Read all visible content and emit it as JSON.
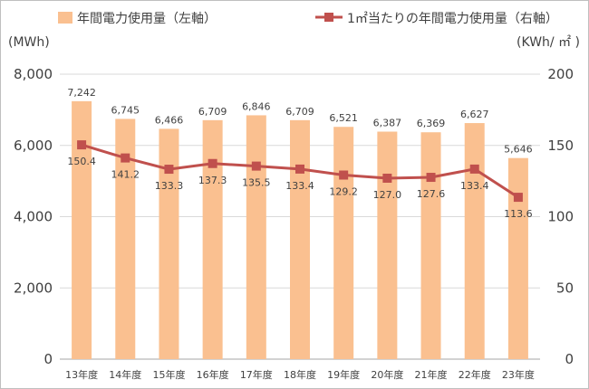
{
  "chart_data": {
    "type": "bar+line",
    "categories": [
      "13年度",
      "14年度",
      "15年度",
      "16年度",
      "17年度",
      "18年度",
      "19年度",
      "20年度",
      "21年度",
      "22年度",
      "23年度"
    ],
    "series": [
      {
        "name": "年間電力使用量（左軸）",
        "type": "bar",
        "axis": "left",
        "values": [
          7242,
          6745,
          6466,
          6709,
          6846,
          6709,
          6521,
          6387,
          6369,
          6627,
          5646
        ],
        "labels": [
          "7,242",
          "6,745",
          "6,466",
          "6,709",
          "6,846",
          "6,709",
          "6,521",
          "6,387",
          "6,369",
          "6,627",
          "5,646"
        ],
        "color": "#fac090"
      },
      {
        "name": "1㎡当たりの年間電力使用量（右軸）",
        "type": "line",
        "axis": "right",
        "values": [
          150.4,
          141.2,
          133.3,
          137.3,
          135.5,
          133.4,
          129.2,
          127.0,
          127.6,
          133.4,
          113.6
        ],
        "labels": [
          "150.4",
          "141.2",
          "133.3",
          "137.3",
          "135.5",
          "133.4",
          "129.2",
          "127.0",
          "127.6",
          "133.4",
          "113.6"
        ],
        "color": "#c0504d"
      }
    ],
    "y_left": {
      "unit": "(MWh)",
      "range": [
        0,
        8000
      ],
      "ticks": [
        0,
        2000,
        4000,
        6000,
        8000
      ],
      "tick_labels": [
        "0",
        "2,000",
        "4,000",
        "6,000",
        "8,000"
      ]
    },
    "y_right": {
      "unit": "(KWh/ ㎡ )",
      "range": [
        0,
        200
      ],
      "ticks": [
        0,
        50,
        100,
        150,
        200
      ],
      "tick_labels": [
        "0",
        "50",
        "100",
        "150",
        "200"
      ]
    },
    "grid": true,
    "legend_position": "top"
  }
}
